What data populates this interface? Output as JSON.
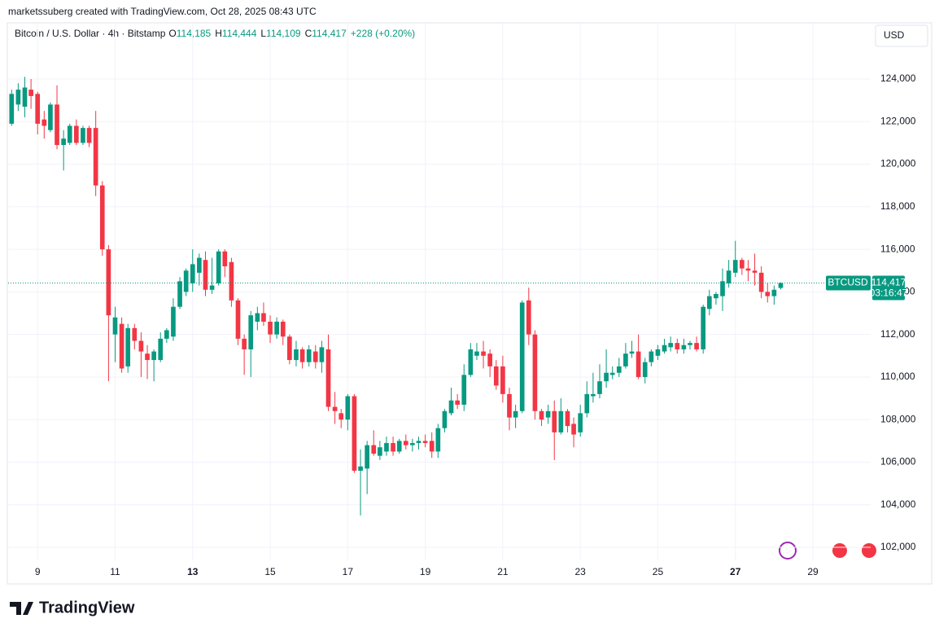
{
  "attribution": "marketssuberg created with TradingView.com, Oct 28, 2025 08:43 UTC",
  "logo": "TradingView",
  "chart_data": {
    "type": "candlestick",
    "title": "Bitcoin / U.S. Dollar · 4h · Bitstamp",
    "legend": [
      {
        "key": "O",
        "text": "114,185"
      },
      {
        "key": "H",
        "text": "114,444"
      },
      {
        "key": "L",
        "text": "114,109"
      },
      {
        "key": "C",
        "text": "114,417"
      }
    ],
    "change": "+228 (+0.20%)",
    "currency": "USD",
    "symbol": "BTCUSD",
    "last_price": {
      "value": 114417,
      "label": "114,417"
    },
    "countdown": "03:16:47",
    "up_color": "#089981",
    "down_color": "#f23645",
    "grid": true,
    "xlim": [
      8.24,
      30.49
    ],
    "ylim": [
      101390,
      126640
    ],
    "xticks": [
      9,
      11,
      13,
      15,
      17,
      19,
      21,
      23,
      25,
      27,
      29
    ],
    "xticks_bold": [
      13,
      27
    ],
    "yticks": [
      {
        "value": 102000,
        "label": "102,000"
      },
      {
        "value": 104000,
        "label": "104,000"
      },
      {
        "value": 106000,
        "label": "106,000"
      },
      {
        "value": 108000,
        "label": "108,000"
      },
      {
        "value": 110000,
        "label": "110,000"
      },
      {
        "value": 112000,
        "label": "112,000"
      },
      {
        "value": 114000,
        "label": "114,000"
      },
      {
        "value": 116000,
        "label": "116,000"
      },
      {
        "value": 118000,
        "label": "118,000"
      },
      {
        "value": 120000,
        "label": "120,000"
      },
      {
        "value": 122000,
        "label": "122,000"
      },
      {
        "value": 124000,
        "label": "124,000"
      }
    ],
    "x": [
      8.33,
      8.5,
      8.67,
      8.83,
      9,
      9.17,
      9.33,
      9.5,
      9.67,
      9.83,
      10,
      10.17,
      10.33,
      10.5,
      10.67,
      10.83,
      11,
      11.17,
      11.33,
      11.5,
      11.67,
      11.83,
      12,
      12.17,
      12.33,
      12.5,
      12.67,
      12.83,
      13,
      13.17,
      13.33,
      13.5,
      13.67,
      13.83,
      14,
      14.17,
      14.33,
      14.5,
      14.67,
      14.83,
      15,
      15.17,
      15.33,
      15.5,
      15.67,
      15.83,
      16,
      16.17,
      16.33,
      16.5,
      16.67,
      16.83,
      17,
      17.17,
      17.33,
      17.5,
      17.67,
      17.83,
      18,
      18.17,
      18.33,
      18.5,
      18.67,
      18.83,
      19,
      19.17,
      19.33,
      19.5,
      19.67,
      19.83,
      20,
      20.17,
      20.33,
      20.5,
      20.67,
      20.83,
      21,
      21.17,
      21.33,
      21.5,
      21.67,
      21.83,
      22,
      22.17,
      22.33,
      22.5,
      22.67,
      22.83,
      23,
      23.17,
      23.33,
      23.5,
      23.67,
      23.83,
      24,
      24.17,
      24.33,
      24.5,
      24.67,
      24.83,
      25,
      25.17,
      25.33,
      25.5,
      25.67,
      25.83,
      26,
      26.17,
      26.33,
      26.5,
      26.67,
      26.83,
      27,
      27.17,
      27.33,
      27.5,
      27.67,
      27.83,
      28,
      28.17
    ],
    "open": [
      121900,
      122800,
      122700,
      123500,
      123300,
      122100,
      121600,
      122800,
      120900,
      121000,
      121800,
      121000,
      121700,
      121700,
      119000,
      116000,
      112000,
      112500,
      110500,
      112300,
      111700,
      111100,
      110800,
      110800,
      111800,
      111900,
      113300,
      114000,
      114400,
      114900,
      115500,
      114100,
      114400,
      115900,
      115400,
      113600,
      111800,
      111300,
      112600,
      113000,
      112600,
      112000,
      112600,
      111900,
      110800,
      111300,
      110700,
      111200,
      110700,
      111300,
      108600,
      108300,
      108000,
      109100,
      105600,
      105700,
      106800,
      106300,
      106500,
      106900,
      106500,
      107000,
      106800,
      106900,
      107000,
      107000,
      106500,
      107600,
      108300,
      108900,
      108700,
      110100,
      111000,
      111200,
      111100,
      110500,
      110500,
      109200,
      108100,
      108400,
      113600,
      112000,
      108400,
      108100,
      108400,
      107400,
      108400,
      107800,
      107400,
      108300,
      109100,
      109200,
      109800,
      110100,
      110200,
      110500,
      111100,
      111200,
      110000,
      110700,
      111000,
      111200,
      111400,
      111600,
      111300,
      111500,
      111600,
      111300,
      113200,
      113700,
      113800,
      114400,
      114900,
      115500,
      115100,
      115000,
      114900,
      114000,
      113800,
      114185
    ],
    "high": [
      123500,
      123800,
      124100,
      124000,
      123400,
      122500,
      122900,
      123700,
      121600,
      121900,
      122100,
      121800,
      121800,
      122500,
      119200,
      116200,
      113300,
      112800,
      112500,
      112500,
      112100,
      111500,
      111300,
      112100,
      112300,
      113700,
      114700,
      115100,
      116000,
      115800,
      115900,
      115600,
      116000,
      116000,
      115600,
      113700,
      112000,
      113100,
      113300,
      113500,
      112900,
      112800,
      112700,
      112000,
      111700,
      111400,
      111500,
      111500,
      111700,
      112000,
      109300,
      108500,
      109200,
      109200,
      106600,
      107000,
      107500,
      107000,
      107200,
      107200,
      107100,
      107300,
      107100,
      107200,
      107300,
      107400,
      107800,
      108500,
      109500,
      109200,
      110600,
      111600,
      111600,
      111700,
      111300,
      110800,
      111000,
      109500,
      108700,
      113600,
      114200,
      112200,
      108500,
      108700,
      108900,
      109000,
      108500,
      108100,
      108700,
      109800,
      110200,
      110600,
      111300,
      110500,
      110900,
      111600,
      111700,
      112000,
      110900,
      111300,
      111500,
      111800,
      111900,
      111800,
      111800,
      111700,
      111900,
      113400,
      114100,
      114000,
      115100,
      115500,
      116400,
      115600,
      115500,
      115800,
      115200,
      114400,
      114300,
      114444
    ],
    "low": [
      121800,
      122500,
      122200,
      122600,
      121400,
      121200,
      121500,
      120700,
      119700,
      120900,
      120900,
      120900,
      120800,
      118500,
      115700,
      109800,
      110700,
      110200,
      110200,
      111300,
      110000,
      109900,
      109800,
      110700,
      111600,
      111700,
      113200,
      113800,
      114000,
      114300,
      113800,
      113900,
      114300,
      114700,
      113300,
      111500,
      110100,
      110000,
      112200,
      112400,
      111600,
      111800,
      111500,
      110600,
      110500,
      110400,
      110500,
      110400,
      110200,
      108400,
      107800,
      107600,
      107500,
      105500,
      103500,
      104500,
      106300,
      106100,
      106300,
      106300,
      106400,
      106600,
      106500,
      106600,
      106700,
      106200,
      106200,
      107400,
      108200,
      108500,
      108400,
      110000,
      110800,
      110400,
      110000,
      109400,
      108800,
      107500,
      107600,
      108300,
      111500,
      108000,
      107700,
      107800,
      106100,
      107300,
      107400,
      106700,
      107200,
      108100,
      108800,
      109000,
      109500,
      109900,
      110000,
      110400,
      110900,
      109900,
      109700,
      110500,
      110800,
      111100,
      111200,
      111100,
      111100,
      111300,
      111200,
      111100,
      112900,
      113400,
      113100,
      114200,
      114700,
      114800,
      114500,
      114300,
      113700,
      113500,
      113400,
      114109
    ],
    "close": [
      123300,
      123500,
      123600,
      123200,
      121900,
      121800,
      122800,
      120900,
      121200,
      121800,
      121000,
      121700,
      121000,
      119000,
      116000,
      112900,
      112800,
      110400,
      112300,
      111700,
      111200,
      110800,
      111200,
      111800,
      112200,
      113300,
      114500,
      115000,
      115300,
      115600,
      114100,
      114300,
      115900,
      115200,
      113600,
      111800,
      111300,
      112900,
      113000,
      112600,
      112000,
      112600,
      111900,
      110800,
      111300,
      110700,
      111300,
      110700,
      111400,
      108600,
      108400,
      108000,
      109100,
      105600,
      105800,
      106800,
      106400,
      106700,
      106900,
      106500,
      107000,
      106800,
      106900,
      107000,
      106900,
      106500,
      107600,
      108400,
      108900,
      108700,
      110100,
      111300,
      111200,
      111000,
      110500,
      109600,
      109200,
      108100,
      108400,
      113500,
      112000,
      108400,
      108000,
      108400,
      107400,
      108400,
      107700,
      107300,
      108300,
      109200,
      109200,
      109800,
      110200,
      110200,
      110500,
      111100,
      111200,
      110000,
      110700,
      111200,
      111300,
      111500,
      111600,
      111300,
      111500,
      111600,
      111300,
      113300,
      113800,
      113900,
      114500,
      115000,
      115500,
      115100,
      115000,
      114900,
      114000,
      113800,
      114100,
      114417
    ]
  }
}
